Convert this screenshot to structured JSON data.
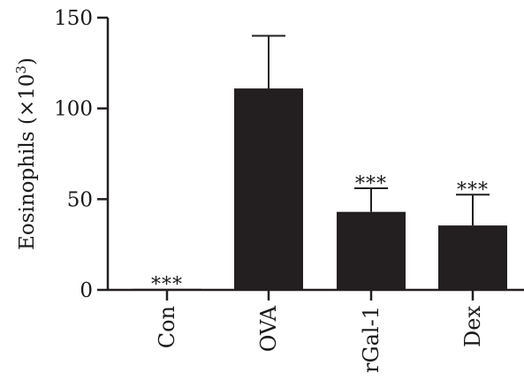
{
  "chart_data": {
    "type": "bar",
    "title": "",
    "xlabel": "",
    "ylabel": "Eosinophils (×10",
    "ylabel_superscript": "3",
    "ylabel_suffix": ")",
    "categories": [
      "Con",
      "OVA",
      "rGal-1",
      "Dex"
    ],
    "values": [
      0.5,
      111,
      43,
      35.5
    ],
    "error_upper": [
      0.3,
      29,
      13,
      17
    ],
    "significance": [
      "***",
      "",
      "***",
      "***"
    ],
    "ylim": [
      0,
      150
    ],
    "yticks": [
      "0",
      "50",
      "100",
      "150"
    ],
    "ytick_values": [
      0,
      50,
      100,
      150
    ],
    "grid": false,
    "bar_color": "#231f20",
    "axis_color": "#231f20"
  }
}
